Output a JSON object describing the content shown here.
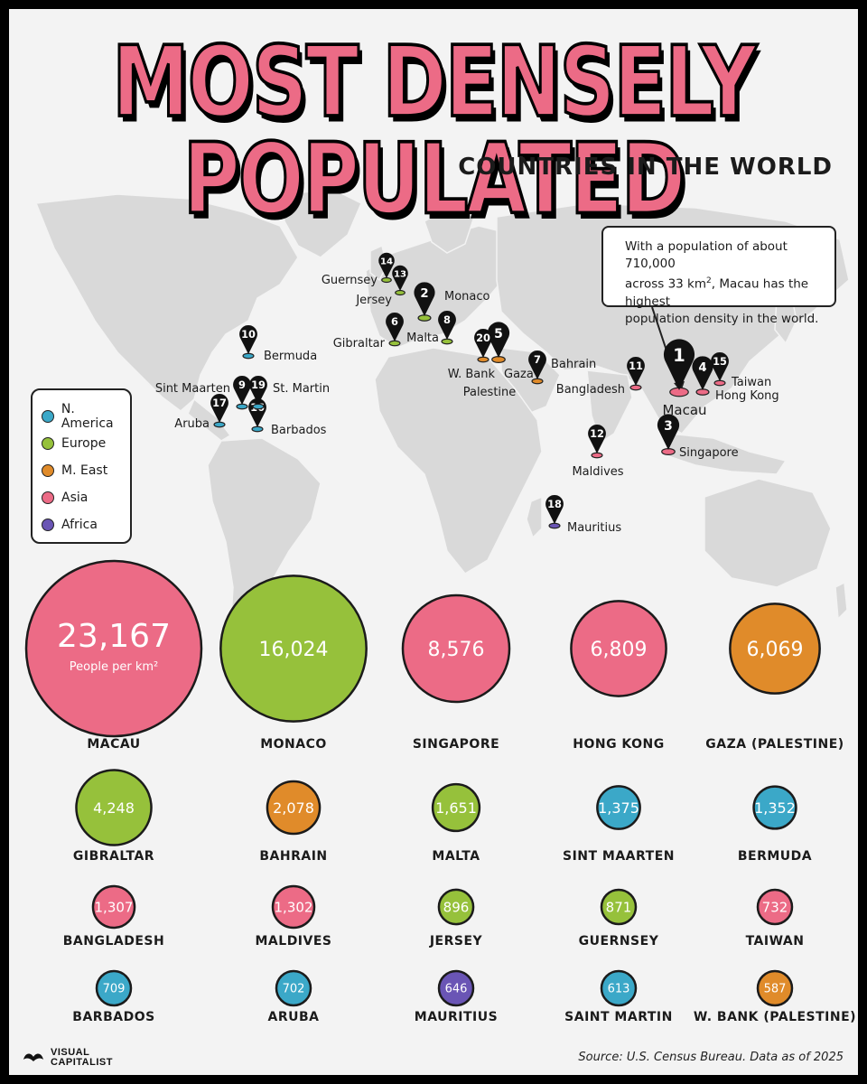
{
  "header": {
    "title": "MOST DENSELY POPULATED",
    "subtitle": "COUNTRIES IN THE WORLD"
  },
  "legend": [
    {
      "label": "N. America",
      "color": "#3ba8c8"
    },
    {
      "label": "Europe",
      "color": "#96c13b"
    },
    {
      "label": "M. East",
      "color": "#e08b2a"
    },
    {
      "label": "Asia",
      "color": "#ec6b86"
    },
    {
      "label": "Africa",
      "color": "#6a55b5"
    }
  ],
  "callout": {
    "line1": "With a population of about 710,000",
    "line2a": "across 33 km",
    "line2sup": "2",
    "line2b": ", Macau has the highest",
    "line3": "population density in the world."
  },
  "map_pins": [
    {
      "rank": "1",
      "label": "Macau",
      "region": "Asia"
    },
    {
      "rank": "2",
      "label": "Monaco",
      "region": "Europe"
    },
    {
      "rank": "3",
      "label": "Singapore",
      "region": "Asia"
    },
    {
      "rank": "4",
      "label": "Hong Kong",
      "region": "Asia"
    },
    {
      "rank": "5",
      "label": "Gaza",
      "region": "M. East"
    },
    {
      "rank": "6",
      "label": "Gibraltar",
      "region": "Europe"
    },
    {
      "rank": "7",
      "label": "Bahrain",
      "region": "M. East"
    },
    {
      "rank": "8",
      "label": "Malta",
      "region": "Europe"
    },
    {
      "rank": "9",
      "label": "Sint Maarten",
      "region": "N. America"
    },
    {
      "rank": "10",
      "label": "Bermuda",
      "region": "N. America"
    },
    {
      "rank": "11",
      "label": "Bangladesh",
      "region": "Asia"
    },
    {
      "rank": "12",
      "label": "Maldives",
      "region": "Asia"
    },
    {
      "rank": "13",
      "label": "Jersey",
      "region": "Europe"
    },
    {
      "rank": "14",
      "label": "Guernsey",
      "region": "Europe"
    },
    {
      "rank": "15",
      "label": "Taiwan",
      "region": "Asia"
    },
    {
      "rank": "16",
      "label": "Barbados",
      "region": "N. America"
    },
    {
      "rank": "17",
      "label": "Aruba",
      "region": "N. America"
    },
    {
      "rank": "18",
      "label": "Mauritius",
      "region": "Africa"
    },
    {
      "rank": "19",
      "label": "St. Martin",
      "region": "N. America"
    },
    {
      "rank": "20",
      "label": "W. Bank",
      "region": "M. East"
    }
  ],
  "palestine_label": "Palestine",
  "chart_data": {
    "type": "bubble",
    "unit_label": "People per km²",
    "categories": [
      "MACAU",
      "MONACO",
      "SINGAPORE",
      "HONG KONG",
      "GAZA (PALESTINE)",
      "GIBRALTAR",
      "BAHRAIN",
      "MALTA",
      "SINT MAARTEN",
      "BERMUDA",
      "BANGLADESH",
      "MALDIVES",
      "JERSEY",
      "GUERNSEY",
      "TAIWAN",
      "BARBADOS",
      "ARUBA",
      "MAURITIUS",
      "SAINT MARTIN",
      "W. BANK (PALESTINE)"
    ],
    "value_labels": [
      "23,167",
      "16,024",
      "8,576",
      "6,809",
      "6,069",
      "4,248",
      "2,078",
      "1,651",
      "1,375",
      "1,352",
      "1,307",
      "1,302",
      "896",
      "871",
      "732",
      "709",
      "702",
      "646",
      "613",
      "587"
    ],
    "values": [
      23167,
      16024,
      8576,
      6809,
      6069,
      4248,
      2078,
      1651,
      1375,
      1352,
      1307,
      1302,
      896,
      871,
      732,
      709,
      702,
      646,
      613,
      587
    ],
    "regions": [
      "Asia",
      "Europe",
      "Asia",
      "Asia",
      "M. East",
      "Europe",
      "M. East",
      "Europe",
      "N. America",
      "N. America",
      "Asia",
      "Asia",
      "Europe",
      "Europe",
      "Asia",
      "N. America",
      "N. America",
      "Africa",
      "N. America",
      "M. East"
    ]
  },
  "footer": {
    "source": "Source: U.S. Census Bureau. Data as of 2025",
    "logo_line1": "VISUAL",
    "logo_line2": "CAPITALIST"
  }
}
